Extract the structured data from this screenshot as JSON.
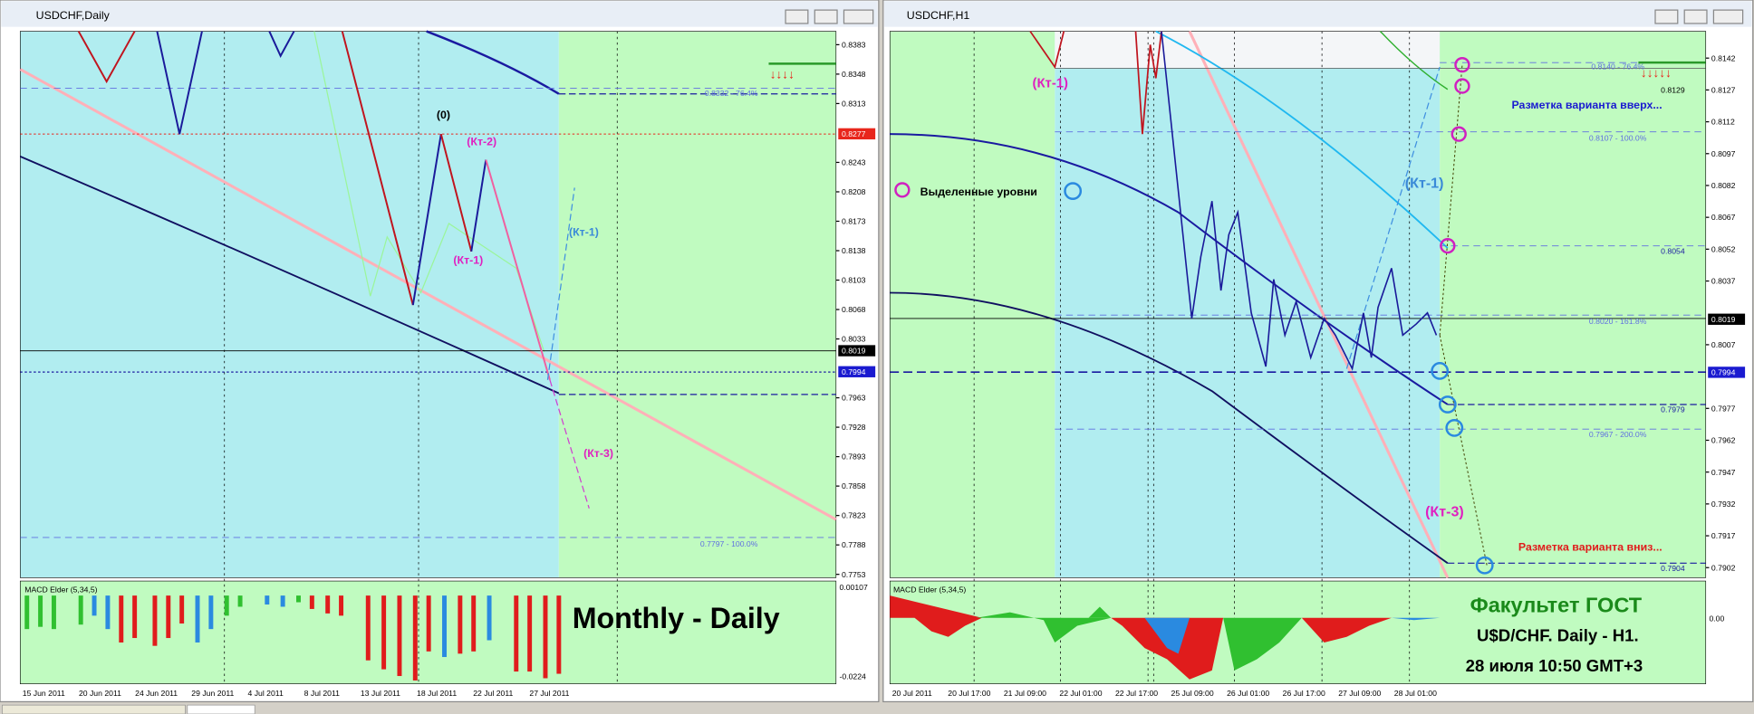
{
  "windows": [
    {
      "title": "USDCHF,Daily",
      "price_ticks": [
        0.8383,
        0.8348,
        0.8313,
        0.8243,
        0.8208,
        0.8173,
        0.8138,
        0.8103,
        0.8068,
        0.8033,
        0.7963,
        0.7928,
        0.7893,
        0.7858,
        0.7823,
        0.7788,
        0.7753
      ],
      "price_markers": [
        {
          "value": 0.8277,
          "color": "#e8261c"
        },
        {
          "value": 0.8019,
          "color": "#000000"
        },
        {
          "value": 0.7994,
          "color": "#1a1ad0"
        }
      ],
      "dates": [
        "15 Jun 2011",
        "20 Jun 2011",
        "24 Jun 2011",
        "29 Jun 2011",
        "4 Jul 2011",
        "8 Jul 2011",
        "13 Jul 2011",
        "18 Jul 2011",
        "22 Jul 2011",
        "27 Jul 2011"
      ],
      "annotations": [
        "(0)",
        "(Кт-2)",
        "(Кт-1)",
        "(Кт-1)",
        "(Кт-3)",
        "0.8332 - 76.4%",
        "0.7797 - 100.0%"
      ],
      "macd": {
        "label": "MACD Elder (5,34,5)",
        "ticks": [
          "0.00107",
          "-0.0224"
        ]
      },
      "caption": "Monthly - Daily"
    },
    {
      "title": "USDCHF,H1",
      "price_ticks": [
        0.8142,
        0.8127,
        0.8112,
        0.8097,
        0.8082,
        0.8067,
        0.8052,
        0.8037,
        0.8007,
        0.7977,
        0.7962,
        0.7947,
        0.7932,
        0.7917,
        0.7902
      ],
      "price_markers": [
        {
          "value": 0.8019,
          "color": "#000000"
        },
        {
          "value": 0.7994,
          "color": "#1a1ad0"
        }
      ],
      "dates": [
        "20 Jul 2011",
        "20 Jul 17:00",
        "21 Jul 09:00",
        "22 Jul 01:00",
        "22 Jul 17:00",
        "25 Jul 09:00",
        "26 Jul 01:00",
        "26 Jul 17:00",
        "27 Jul 09:00",
        "28 Jul 01:00"
      ],
      "annotations": [
        "(Кт-1)",
        "(Кт-1)",
        "(Кт-3)",
        "Выделенные уровни",
        "Разметка варианта вверх...",
        "Разметка варианта вниз...",
        "0.8140 - 76.4%",
        "0.8129",
        "0.8107 - 100.0%",
        "0.8054",
        "0.8020 - 161.8%",
        "0.7979",
        "0.7967 - 200.0%",
        "0.7904"
      ],
      "macd": {
        "label": "MACD Elder (5,34,5)",
        "ticks": [
          "0.00"
        ]
      },
      "caption": [
        "Факультет ГОСТ",
        "U$D/CHF. Daily - H1.",
        "28 июля 10:50 GMT+3"
      ]
    }
  ]
}
